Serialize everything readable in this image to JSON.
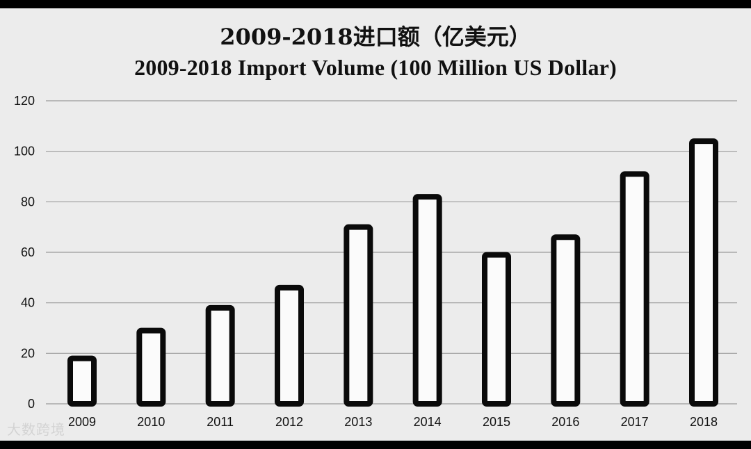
{
  "chart_data": {
    "type": "bar",
    "title": "2009-2018进口额（亿美元）",
    "subtitle": "2009-2018 Import Volume (100 Million US Dollar)",
    "xlabel": "",
    "ylabel": "",
    "categories": [
      "2009",
      "2010",
      "2011",
      "2012",
      "2013",
      "2014",
      "2015",
      "2016",
      "2017",
      "2018"
    ],
    "values": [
      18,
      29,
      38,
      46,
      70,
      82,
      59,
      66,
      91,
      104
    ],
    "ylim": [
      0,
      120
    ],
    "yticks": [
      "0",
      "20",
      "40",
      "60",
      "80",
      "100",
      "120"
    ],
    "grid": true,
    "legend": "none",
    "bar_fill": "#fbfbfb",
    "bar_outline": "#0a0a0a"
  },
  "watermark": {
    "text": "大数跨境"
  }
}
